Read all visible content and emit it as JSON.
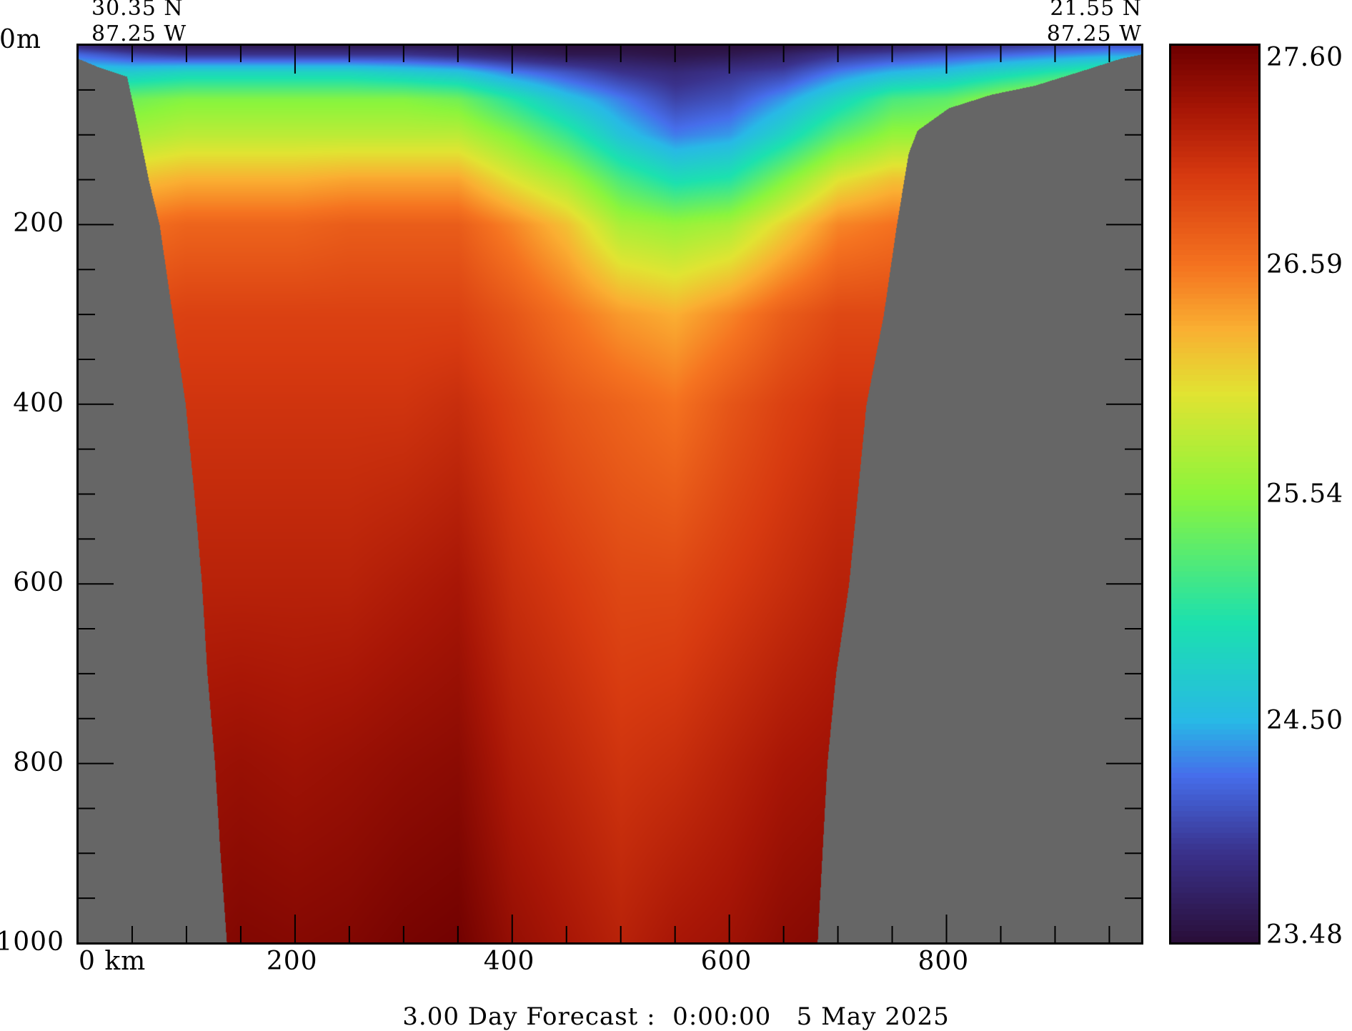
{
  "chart_data": {
    "type": "heatmap",
    "title": "3.00 Day Forecast :  0:00:00   5 May 2025",
    "start_point": {
      "lat": "30.35 N",
      "lon": "87.25 W"
    },
    "end_point": {
      "lat": "21.55 N",
      "lon": "87.25 W"
    },
    "xlabel_first": "0 km",
    "x_unit": "km",
    "xlim": [
      0,
      980
    ],
    "x_tick_labels": [
      "0 km",
      "200",
      "400",
      "600",
      "800"
    ],
    "x_tick_values": [
      0,
      200,
      400,
      600,
      800
    ],
    "ylim": [
      0,
      1000
    ],
    "y_inverted": true,
    "y_tick_labels": [
      "0m",
      "200",
      "400",
      "600",
      "800",
      "1000"
    ],
    "y_tick_values": [
      0,
      200,
      400,
      600,
      800,
      1000
    ],
    "colorbar": {
      "min": 23.48,
      "max": 27.6,
      "tick_labels": [
        "27.60",
        "26.59",
        "25.54",
        "24.50",
        "23.48"
      ],
      "tick_values": [
        27.6,
        26.59,
        25.54,
        24.5,
        23.48
      ]
    },
    "grid_depths_m": [
      0,
      10,
      30,
      60,
      100,
      150,
      200,
      300,
      400,
      600,
      800,
      1000
    ],
    "grid_distance_km": [
      0,
      50,
      100,
      150,
      200,
      250,
      300,
      350,
      400,
      450,
      500,
      550,
      600,
      650,
      700,
      750,
      800,
      850,
      900,
      950
    ],
    "temperature_columns": [
      [
        23.8,
        24.2,
        24.7,
        25.3,
        25.7,
        26.2,
        26.6,
        26.9,
        27.0,
        27.15,
        27.3,
        27.4
      ],
      [
        23.6,
        24.0,
        24.7,
        25.4,
        25.7,
        26.2,
        26.6,
        26.9,
        27.0,
        27.15,
        27.3,
        27.4
      ],
      [
        23.6,
        23.9,
        24.8,
        25.5,
        25.8,
        26.3,
        26.7,
        26.95,
        27.05,
        27.2,
        27.35,
        27.45
      ],
      [
        23.6,
        23.9,
        24.8,
        25.5,
        25.8,
        26.3,
        26.7,
        26.95,
        27.05,
        27.2,
        27.38,
        27.5
      ],
      [
        23.6,
        23.9,
        24.8,
        25.5,
        25.8,
        26.3,
        26.7,
        26.95,
        27.05,
        27.2,
        27.35,
        27.48
      ],
      [
        23.6,
        23.9,
        24.8,
        25.5,
        25.8,
        26.35,
        26.75,
        26.95,
        27.05,
        27.2,
        27.38,
        27.5
      ],
      [
        23.6,
        23.9,
        24.7,
        25.5,
        25.8,
        26.35,
        26.75,
        26.95,
        27.05,
        27.25,
        27.42,
        27.55
      ],
      [
        23.6,
        23.8,
        24.6,
        25.4,
        25.8,
        26.35,
        26.75,
        26.95,
        27.1,
        27.3,
        27.45,
        27.58
      ],
      [
        23.5,
        23.7,
        24.3,
        25.0,
        25.5,
        26.0,
        26.5,
        26.8,
        26.95,
        27.1,
        27.25,
        27.4
      ],
      [
        23.5,
        23.6,
        24.1,
        24.6,
        25.1,
        25.7,
        26.2,
        26.6,
        26.8,
        27.0,
        27.15,
        27.3
      ],
      [
        23.5,
        23.6,
        23.9,
        24.3,
        24.6,
        25.2,
        25.7,
        26.4,
        26.7,
        26.9,
        27.05,
        27.2
      ],
      [
        23.5,
        23.55,
        23.8,
        24.0,
        24.3,
        24.9,
        25.6,
        26.3,
        26.6,
        26.9,
        27.1,
        27.3
      ],
      [
        23.5,
        23.6,
        23.9,
        24.1,
        24.4,
        25.0,
        25.7,
        26.5,
        26.8,
        27.0,
        27.2,
        27.35
      ],
      [
        23.5,
        23.7,
        24.0,
        24.4,
        24.8,
        25.5,
        26.1,
        26.75,
        26.95,
        27.1,
        27.3,
        27.45
      ],
      [
        23.6,
        23.9,
        24.3,
        24.8,
        25.3,
        26.0,
        26.5,
        26.9,
        27.05,
        27.2,
        27.35,
        27.5
      ],
      [
        23.7,
        24.0,
        24.5,
        25.2,
        25.6,
        26.2,
        26.6,
        26.9,
        27.05,
        27.2,
        27.35,
        27.5
      ],
      [
        23.8,
        24.1,
        24.6,
        25.3,
        25.6,
        26.2,
        26.6,
        26.9,
        27.05,
        27.2,
        27.35,
        27.5
      ],
      [
        23.9,
        24.2,
        24.8,
        25.6,
        25.8,
        26.2,
        26.6,
        26.9,
        27.05,
        27.2,
        27.35,
        27.5
      ],
      [
        24.0,
        24.3,
        25.0,
        25.8,
        26.0,
        26.3,
        26.6,
        26.9,
        27.05,
        27.2,
        27.35,
        27.5
      ],
      [
        24.1,
        24.4,
        25.2,
        26.0,
        26.1,
        26.3,
        26.6,
        26.9,
        27.05,
        27.2,
        27.35,
        27.5
      ]
    ],
    "bathymetry_km_depth": [
      [
        0,
        15
      ],
      [
        20,
        25
      ],
      [
        45,
        35
      ],
      [
        55,
        90
      ],
      [
        65,
        150
      ],
      [
        75,
        200
      ],
      [
        87,
        300
      ],
      [
        99,
        400
      ],
      [
        107,
        500
      ],
      [
        114,
        600
      ],
      [
        119,
        700
      ],
      [
        126,
        800
      ],
      [
        131,
        900
      ],
      [
        137,
        1000
      ],
      [
        140,
        1100
      ],
      [
        678,
        1100
      ],
      [
        681,
        1000
      ],
      [
        690,
        800
      ],
      [
        698,
        700
      ],
      [
        710,
        600
      ],
      [
        718,
        500
      ],
      [
        726,
        400
      ],
      [
        742,
        300
      ],
      [
        754,
        200
      ],
      [
        765,
        120
      ],
      [
        773,
        95
      ],
      [
        802,
        70
      ],
      [
        841,
        55
      ],
      [
        881,
        45
      ],
      [
        921,
        30
      ],
      [
        960,
        15
      ],
      [
        980,
        10
      ]
    ],
    "land_color": "#666666"
  }
}
